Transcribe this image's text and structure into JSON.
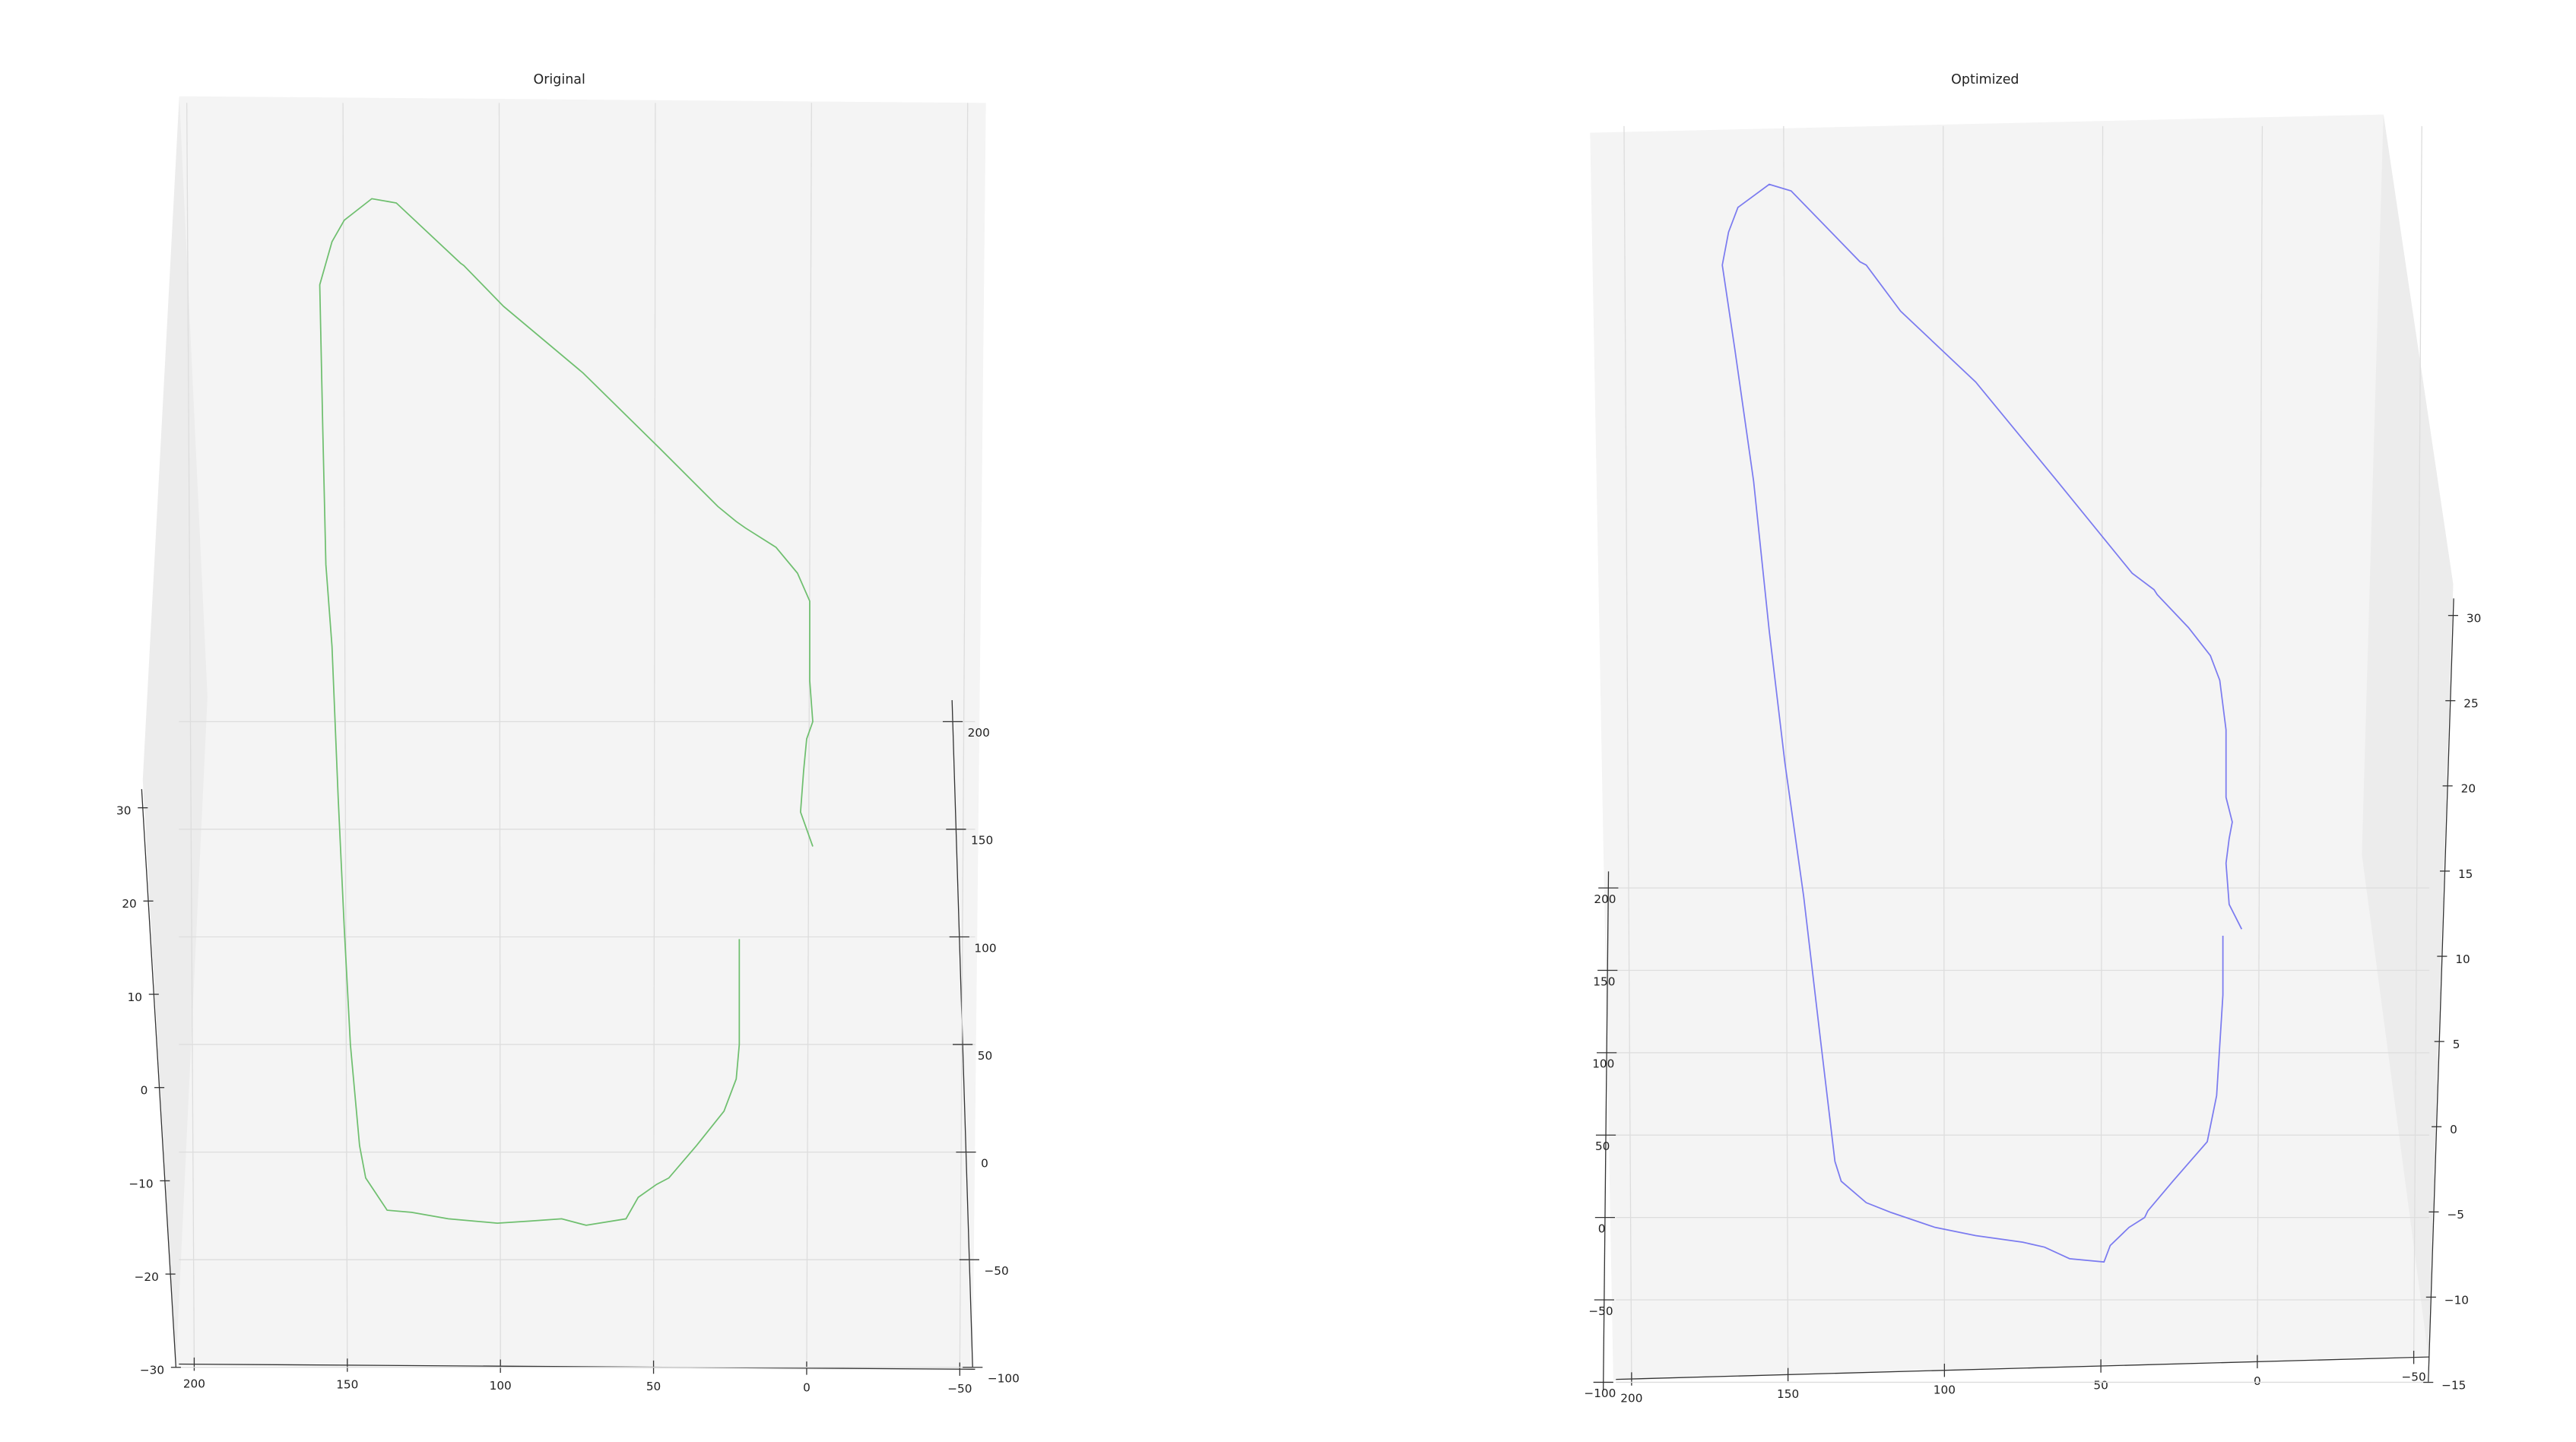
{
  "chart_data": [
    {
      "type": "line3d",
      "title": "Original",
      "series": [
        {
          "color": "#6fbf6f",
          "x": [
            -2,
            2,
            1,
            0,
            -2,
            -1,
            -1,
            3,
            10,
            20,
            23,
            29,
            48,
            73,
            99,
            112,
            113,
            134,
            142,
            151,
            155,
            159,
            158,
            157,
            155,
            153,
            151,
            149,
            146,
            144,
            137,
            129,
            117,
            101,
            90,
            80,
            72,
            59,
            55,
            49,
            45,
            36,
            27,
            23,
            22,
            22
          ],
          "y": [
            142,
            158,
            177,
            192,
            200,
            219,
            256,
            269,
            281,
            290,
            293,
            300,
            327,
            362,
            393,
            412,
            413,
            441,
            443,
            433,
            423,
            403,
            335,
            273,
            235,
            165,
            104,
            50,
            3,
            -12,
            -27,
            -28,
            -31,
            -33,
            -32,
            -31,
            -34,
            -31,
            -21,
            -15,
            -12,
            3,
            19,
            34,
            50,
            99
          ]
        }
      ],
      "xlim": [
        -55,
        205
      ],
      "ylim": [
        -100,
        210
      ],
      "zlim": [
        -30,
        32
      ],
      "xticks": [
        200,
        150,
        100,
        50,
        0,
        {
          "value": -50,
          "label": "−50"
        }
      ],
      "yticks": [
        200,
        150,
        100,
        50,
        0,
        {
          "value": -50,
          "label": "−50"
        },
        {
          "value": -100,
          "label": "−100"
        }
      ],
      "zticks": [
        30,
        20,
        10,
        0,
        {
          "value": -10,
          "label": "−10"
        },
        {
          "value": -20,
          "label": "−20"
        },
        {
          "value": -30,
          "label": "−30"
        }
      ],
      "grid": true
    },
    {
      "type": "line3d",
      "title": "Optimized",
      "series": [
        {
          "color": "#7b7bf0",
          "x": [
            5,
            9,
            10,
            9,
            8,
            10,
            10,
            12,
            15,
            22,
            32,
            33,
            40,
            64,
            90,
            114,
            125,
            127,
            149,
            156,
            166,
            169,
            171,
            167,
            161,
            156,
            151,
            145,
            140,
            135,
            133,
            125,
            117,
            103,
            90,
            75,
            68,
            60,
            49,
            47,
            41,
            36,
            35,
            27,
            16,
            13,
            11,
            11
          ],
          "y": [
            175,
            190,
            215,
            230,
            240,
            255,
            296,
            326,
            341,
            358,
            378,
            381,
            391,
            447,
            507,
            550,
            578,
            580,
            623,
            627,
            613,
            598,
            578,
            527,
            447,
            356,
            276,
            195,
            114,
            34,
            22,
            9,
            3,
            -6,
            -11,
            -15,
            -18,
            -25,
            -27,
            -17,
            -6,
            0,
            4,
            22,
            46,
            74,
            135,
            171
          ]
        }
      ],
      "xlim": [
        -55,
        205
      ],
      "ylim": [
        -105,
        210
      ],
      "zlim": [
        -15,
        31
      ],
      "xticks": [
        200,
        150,
        100,
        50,
        0,
        {
          "value": -50,
          "label": "−50"
        }
      ],
      "yticks": [
        200,
        150,
        100,
        50,
        0,
        {
          "value": -50,
          "label": "−50"
        },
        {
          "value": -100,
          "label": "−100"
        }
      ],
      "zticks": [
        30,
        25,
        20,
        15,
        10,
        5,
        0,
        {
          "value": -5,
          "label": "−5"
        },
        {
          "value": -10,
          "label": "−10"
        },
        {
          "value": -15,
          "label": "−15"
        }
      ],
      "grid": true
    }
  ]
}
